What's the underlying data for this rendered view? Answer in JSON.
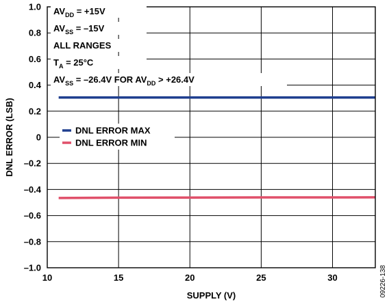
{
  "chart_data": {
    "type": "line",
    "title": "",
    "xlabel": "SUPPLY (V)",
    "ylabel": "DNL ERROR (LSB)",
    "xlim": [
      10,
      33
    ],
    "ylim": [
      -1.0,
      1.0
    ],
    "x_ticks": [
      10,
      15,
      20,
      25,
      30
    ],
    "x_tick_labels": [
      "10",
      "15",
      "20",
      "25",
      "30"
    ],
    "y_ticks": [
      1.0,
      0.8,
      0.6,
      0.4,
      0.2,
      0,
      -0.2,
      -0.4,
      -0.6,
      -0.8,
      -1.0
    ],
    "y_tick_labels": [
      "1.0",
      "0.8",
      "0.6",
      "0.4",
      "0.2",
      "0",
      "–0.2",
      "–0.4",
      "–0.6",
      "–0.8",
      "–1.0"
    ],
    "grid": true,
    "legend_position": "center-left",
    "series": [
      {
        "name": "DNL ERROR MAX",
        "color": "#1f3f8f",
        "x": [
          10.8,
          15,
          20,
          25,
          30,
          33
        ],
        "y": [
          0.305,
          0.305,
          0.305,
          0.305,
          0.305,
          0.305
        ]
      },
      {
        "name": "DNL ERROR MIN",
        "color": "#e0506a",
        "x": [
          10.8,
          15,
          20,
          25,
          30,
          33
        ],
        "y": [
          -0.465,
          -0.463,
          -0.462,
          -0.461,
          -0.461,
          -0.46
        ]
      }
    ],
    "annotations": [
      {
        "main": "AV",
        "sub": "DD",
        "rest": " = +15V"
      },
      {
        "main": "AV",
        "sub": "SS",
        "rest": " = –15V"
      },
      {
        "main": "ALL RANGES",
        "sub": "",
        "rest": ""
      },
      {
        "main": "T",
        "sub": "A",
        "rest": " = 25°C"
      },
      {
        "main": "AV",
        "sub": "SS",
        "rest": " = –26.4V FOR AV",
        "sub2": "DD",
        "rest2": " > +26.4V"
      }
    ],
    "figure_id": "09226-138"
  }
}
